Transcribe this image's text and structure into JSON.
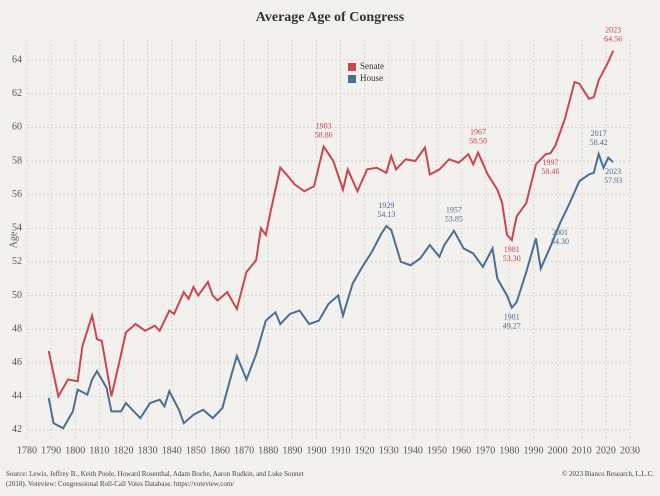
{
  "chart_data": {
    "type": "line",
    "title": "Average Age of Congress",
    "ylabel": "Age",
    "source": [
      "Source: Lewis, Jeffrey B., Keith Poole, Howard Rosenthal, Adam Boche, Aaron Rudkin, and Luke Sonnet",
      "(2018). Voteview: Congressional Roll-Call Votes Database. https://voteview.com/"
    ],
    "credit": "© 2023 Bianco Research, L.L.C.",
    "xlim": [
      1780,
      2030
    ],
    "xticks": [
      1780,
      1790,
      1800,
      1810,
      1820,
      1830,
      1840,
      1850,
      1860,
      1870,
      1880,
      1890,
      1900,
      1910,
      1920,
      1930,
      1940,
      1950,
      1960,
      1970,
      1980,
      1990,
      2000,
      2010,
      2020,
      2030
    ],
    "ylim": [
      41.4,
      65.2
    ],
    "yticks": [
      42,
      44,
      46,
      48,
      50,
      52,
      54,
      56,
      58,
      60,
      62,
      64
    ],
    "grid": true,
    "legend": "top",
    "series": [
      {
        "name": "Senate",
        "color": "#c9474f",
        "x": [
          1789,
          1793,
          1797,
          1801,
          1803,
          1807,
          1809,
          1811,
          1815,
          1819,
          1821,
          1825,
          1829,
          1833,
          1835,
          1839,
          1841,
          1845,
          1847,
          1849,
          1851,
          1855,
          1857,
          1859,
          1863,
          1867,
          1871,
          1875,
          1877,
          1879,
          1881,
          1885,
          1887,
          1891,
          1895,
          1899,
          1903,
          1907,
          1911,
          1913,
          1917,
          1921,
          1925,
          1929,
          1931,
          1933,
          1937,
          1941,
          1945,
          1947,
          1951,
          1955,
          1959,
          1963,
          1965,
          1967,
          1971,
          1975,
          1977,
          1979,
          1981,
          1983,
          1987,
          1991,
          1995,
          1997,
          1999,
          2003,
          2007,
          2009,
          2013,
          2015,
          2017,
          2021,
          2023
        ],
        "values": [
          46.7,
          44.0,
          45.0,
          44.9,
          47.0,
          48.8,
          47.4,
          47.3,
          44.0,
          46.5,
          47.8,
          48.3,
          47.9,
          48.2,
          47.9,
          49.1,
          48.9,
          50.2,
          49.8,
          50.5,
          50.0,
          50.8,
          50.0,
          49.7,
          50.2,
          49.2,
          51.4,
          52.1,
          54.0,
          53.6,
          55.0,
          57.6,
          57.3,
          56.6,
          56.2,
          56.5,
          58.86,
          58.0,
          56.3,
          57.5,
          56.2,
          57.5,
          57.6,
          57.3,
          58.3,
          57.5,
          58.1,
          58.0,
          58.8,
          57.2,
          57.5,
          58.1,
          57.9,
          58.4,
          57.8,
          58.5,
          57.2,
          56.3,
          55.5,
          53.6,
          53.3,
          54.7,
          55.5,
          57.8,
          58.4,
          58.46,
          58.9,
          60.5,
          62.7,
          62.6,
          61.7,
          61.8,
          62.8,
          63.9,
          64.56
        ],
        "value_labels": [
          null,
          null,
          null,
          null,
          null,
          null,
          null,
          null,
          null,
          null,
          null,
          null,
          null,
          null,
          null,
          null,
          null,
          null,
          null,
          null,
          null,
          null,
          null,
          null,
          null,
          null,
          null,
          null,
          null,
          null,
          null,
          null,
          null,
          null,
          null,
          null,
          "58.86",
          null,
          null,
          null,
          null,
          null,
          null,
          null,
          null,
          null,
          null,
          null,
          null,
          null,
          null,
          null,
          null,
          null,
          null,
          "58.50",
          null,
          null,
          null,
          null,
          "53.30",
          null,
          null,
          null,
          null,
          "58.46",
          null,
          null,
          null,
          null,
          null,
          null,
          null,
          null,
          "64.56"
        ]
      },
      {
        "name": "House",
        "color": "#4a6f96",
        "x": [
          1789,
          1791,
          1795,
          1799,
          1801,
          1805,
          1807,
          1809,
          1813,
          1815,
          1819,
          1821,
          1827,
          1831,
          1835,
          1837,
          1839,
          1843,
          1845,
          1849,
          1853,
          1857,
          1861,
          1865,
          1867,
          1871,
          1875,
          1879,
          1883,
          1885,
          1889,
          1893,
          1897,
          1901,
          1905,
          1909,
          1911,
          1915,
          1919,
          1923,
          1927,
          1929,
          1931,
          1935,
          1939,
          1943,
          1947,
          1951,
          1953,
          1957,
          1961,
          1965,
          1969,
          1973,
          1975,
          1979,
          1981,
          1983,
          1987,
          1991,
          1993,
          1997,
          2001,
          2005,
          2009,
          2013,
          2015,
          2017,
          2019,
          2021,
          2023
        ],
        "values": [
          43.9,
          42.4,
          42.1,
          43.1,
          44.4,
          44.1,
          45.0,
          45.5,
          44.5,
          43.1,
          43.1,
          43.6,
          42.7,
          43.6,
          43.8,
          43.4,
          44.3,
          43.2,
          42.4,
          42.9,
          43.2,
          42.7,
          43.3,
          45.4,
          46.4,
          45.0,
          46.5,
          48.5,
          49.0,
          48.3,
          48.9,
          49.1,
          48.3,
          48.5,
          49.5,
          50.0,
          48.8,
          50.7,
          51.7,
          52.6,
          53.7,
          54.13,
          53.9,
          52.0,
          51.8,
          52.2,
          53.0,
          52.3,
          53.0,
          53.85,
          52.8,
          52.5,
          51.7,
          52.8,
          51.0,
          50.0,
          49.27,
          49.6,
          51.4,
          53.4,
          51.6,
          52.9,
          54.3,
          55.5,
          56.8,
          57.2,
          57.3,
          58.42,
          57.6,
          58.2,
          57.93
        ],
        "value_labels": [
          null,
          null,
          null,
          null,
          null,
          null,
          null,
          null,
          null,
          null,
          null,
          null,
          null,
          null,
          null,
          null,
          null,
          null,
          null,
          null,
          null,
          null,
          null,
          null,
          null,
          null,
          null,
          null,
          null,
          null,
          null,
          null,
          null,
          null,
          null,
          null,
          null,
          null,
          null,
          null,
          null,
          "54.13",
          null,
          null,
          null,
          null,
          null,
          null,
          null,
          "53.85",
          null,
          null,
          null,
          null,
          null,
          null,
          "49.27",
          null,
          null,
          null,
          null,
          null,
          "54.30",
          null,
          null,
          null,
          null,
          "58.42",
          null,
          null,
          "57.93"
        ]
      }
    ]
  }
}
